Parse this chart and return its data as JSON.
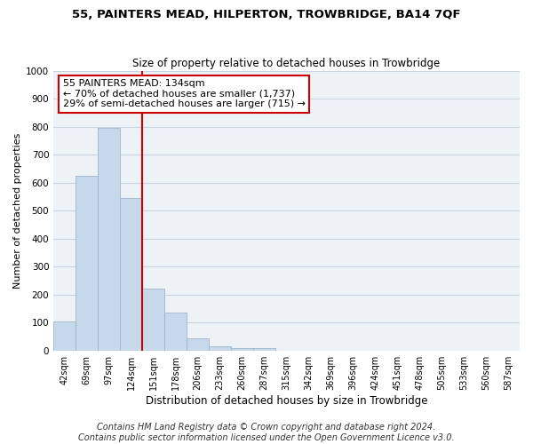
{
  "title": "55, PAINTERS MEAD, HILPERTON, TROWBRIDGE, BA14 7QF",
  "subtitle": "Size of property relative to detached houses in Trowbridge",
  "xlabel": "Distribution of detached houses by size in Trowbridge",
  "ylabel": "Number of detached properties",
  "bar_labels": [
    "42sqm",
    "69sqm",
    "97sqm",
    "124sqm",
    "151sqm",
    "178sqm",
    "206sqm",
    "233sqm",
    "260sqm",
    "287sqm",
    "315sqm",
    "342sqm",
    "369sqm",
    "396sqm",
    "424sqm",
    "451sqm",
    "478sqm",
    "505sqm",
    "533sqm",
    "560sqm",
    "587sqm"
  ],
  "bar_values": [
    105,
    625,
    795,
    545,
    220,
    135,
    42,
    15,
    10,
    10,
    0,
    0,
    0,
    0,
    0,
    0,
    0,
    0,
    0,
    0,
    0
  ],
  "bar_color": "#c8d8eb",
  "bar_edgecolor": "#a0b8cc",
  "vline_x": 3.5,
  "vline_color": "#cc0000",
  "annotation_line1": "55 PAINTERS MEAD: 134sqm",
  "annotation_line2": "← 70% of detached houses are smaller (1,737)",
  "annotation_line3": "29% of semi-detached houses are larger (715) →",
  "annotation_box_edgecolor": "#cc0000",
  "annotation_fontsize": 8,
  "ylim": [
    0,
    1000
  ],
  "yticks": [
    0,
    100,
    200,
    300,
    400,
    500,
    600,
    700,
    800,
    900,
    1000
  ],
  "grid_color": "#c8d4de",
  "background_color": "#edf2f7",
  "footer_text": "Contains HM Land Registry data © Crown copyright and database right 2024.\nContains public sector information licensed under the Open Government Licence v3.0.",
  "title_fontsize": 9.5,
  "subtitle_fontsize": 8.5,
  "ylabel_fontsize": 8,
  "xlabel_fontsize": 8.5,
  "footer_fontsize": 7
}
